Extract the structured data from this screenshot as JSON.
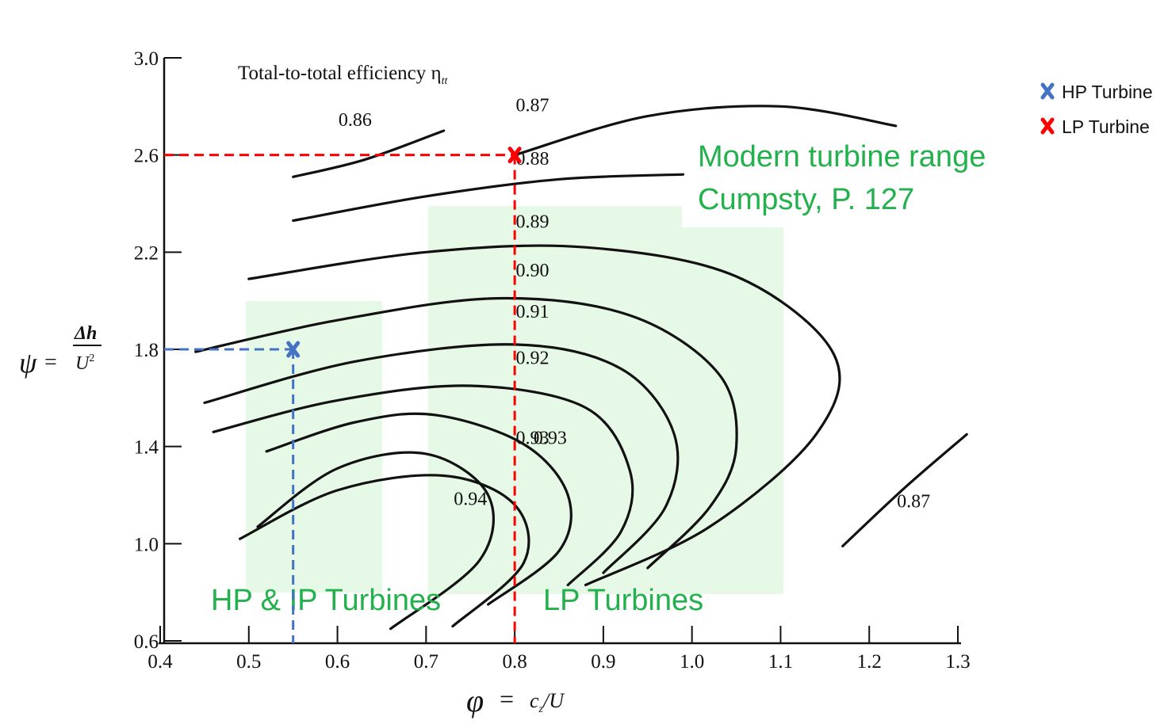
{
  "chart_data": {
    "type": "line",
    "title": "Total-to-total efficiency η",
    "title_subscript": "tt",
    "xlabel": {
      "symbol": "φ",
      "eq": "=",
      "expr": "c",
      "sub": "z",
      "tail": "/U"
    },
    "ylabel": {
      "symbol": "ψ",
      "eq": "=",
      "num": "Δh",
      "den": "U",
      "den_sup": "2"
    },
    "xlim": [
      0.4,
      1.3
    ],
    "ylim": [
      0.6,
      3.0
    ],
    "x_ticks": [
      "0.4",
      "0.5",
      "0.6",
      "0.7",
      "0.8",
      "0.9",
      "1.0",
      "1.1",
      "1.2",
      "1.3"
    ],
    "y_ticks": [
      "3.0",
      "2.6",
      "2.2",
      "1.8",
      "1.4",
      "1.0",
      "0.6"
    ],
    "contours": [
      {
        "label": "0.86",
        "label_pos": [
          0.62,
          2.72
        ],
        "points": [
          [
            0.55,
            2.51
          ],
          [
            0.63,
            2.58
          ],
          [
            0.72,
            2.7
          ]
        ]
      },
      {
        "label": "0.87",
        "label_pos": [
          0.82,
          2.78
        ],
        "points": [
          [
            0.8,
            2.6
          ],
          [
            0.95,
            2.76
          ],
          [
            1.1,
            2.8
          ],
          [
            1.23,
            2.72
          ]
        ]
      },
      {
        "label": "0.88",
        "label_pos": [
          0.82,
          2.56
        ],
        "points": [
          [
            0.55,
            2.33
          ],
          [
            0.7,
            2.43
          ],
          [
            0.85,
            2.5
          ],
          [
            0.99,
            2.52
          ]
        ]
      },
      {
        "label": "0.89",
        "label_pos": [
          0.82,
          2.3
        ],
        "points": [
          [
            0.5,
            2.09
          ],
          [
            0.7,
            2.2
          ],
          [
            0.88,
            2.22
          ],
          [
            1.05,
            2.1
          ],
          [
            1.16,
            1.78
          ],
          [
            1.14,
            1.45
          ],
          [
            1.02,
            1.07
          ],
          [
            0.88,
            0.83
          ]
        ]
      },
      {
        "label": "0.90",
        "label_pos": [
          0.82,
          2.1
        ],
        "points": [
          [
            0.44,
            1.79
          ],
          [
            0.6,
            1.92
          ],
          [
            0.78,
            2.01
          ],
          [
            0.93,
            1.94
          ],
          [
            1.03,
            1.7
          ],
          [
            1.05,
            1.4
          ],
          [
            1.02,
            1.15
          ],
          [
            0.95,
            0.9
          ]
        ]
      },
      {
        "label": "0.91",
        "label_pos": [
          0.82,
          1.93
        ],
        "points": [
          [
            0.45,
            1.58
          ],
          [
            0.62,
            1.75
          ],
          [
            0.8,
            1.82
          ],
          [
            0.92,
            1.72
          ],
          [
            0.98,
            1.45
          ],
          [
            0.97,
            1.15
          ],
          [
            0.9,
            0.88
          ]
        ]
      },
      {
        "label": "0.92",
        "label_pos": [
          0.82,
          1.74
        ],
        "points": [
          [
            0.46,
            1.46
          ],
          [
            0.6,
            1.59
          ],
          [
            0.75,
            1.65
          ],
          [
            0.88,
            1.56
          ],
          [
            0.93,
            1.3
          ],
          [
            0.92,
            1.05
          ],
          [
            0.86,
            0.83
          ]
        ]
      },
      {
        "label": "0.93",
        "label_pos": [
          0.82,
          1.41
        ],
        "points": [
          [
            0.52,
            1.38
          ],
          [
            0.62,
            1.5
          ],
          [
            0.71,
            1.53
          ],
          [
            0.81,
            1.41
          ],
          [
            0.86,
            1.2
          ],
          [
            0.85,
            0.97
          ],
          [
            0.77,
            0.75
          ]
        ]
      },
      {
        "label": "0.94",
        "label_pos": [
          0.75,
          1.16
        ],
        "points": [
          [
            0.51,
            1.07
          ],
          [
            0.6,
            1.31
          ],
          [
            0.7,
            1.37
          ],
          [
            0.77,
            1.2
          ],
          [
            0.76,
            0.93
          ],
          [
            0.66,
            0.65
          ]
        ]
      },
      {
        "label": "0.93",
        "label_pos": [
          0.84,
          1.41
        ],
        "points": [
          [
            0.49,
            1.02
          ],
          [
            0.6,
            1.22
          ],
          [
            0.72,
            1.28
          ],
          [
            0.8,
            1.16
          ],
          [
            0.81,
            0.92
          ],
          [
            0.73,
            0.66
          ]
        ]
      },
      {
        "label": "0.87",
        "label_pos": [
          1.25,
          1.15
        ],
        "points": [
          [
            1.17,
            0.99
          ],
          [
            1.24,
            1.23
          ],
          [
            1.31,
            1.45
          ]
        ]
      }
    ],
    "series": [
      {
        "name": "HP Turbine",
        "x": [
          0.55
        ],
        "y": [
          1.8
        ]
      },
      {
        "name": "LP Turbine",
        "x": [
          0.8
        ],
        "y": [
          2.6
        ]
      }
    ],
    "colors": {
      "hp": "#4472c4",
      "lp": "#ff0000",
      "region_fill": "#e6f8e6",
      "region_text": "#22b14c"
    },
    "region_labels": {
      "hp_ip": "HP & IP Turbines",
      "lp": "LP Turbines"
    },
    "annotation": {
      "line1": "Modern turbine range",
      "line2": "Cumpsty, P. 127"
    }
  }
}
